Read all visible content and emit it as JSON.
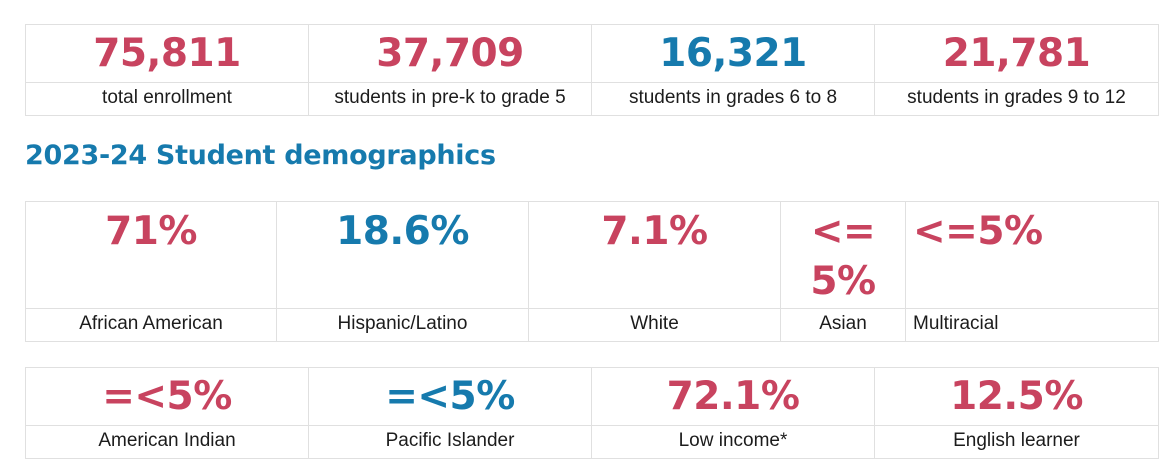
{
  "enrollment": [
    {
      "value": "75,811",
      "label": "total enrollment"
    },
    {
      "value": "37,709",
      "label": "students in pre-k to grade 5"
    },
    {
      "value": "16,321",
      "label": "students in grades 6 to 8"
    },
    {
      "value": "21,781",
      "label": "students in grades 9 to 12"
    }
  ],
  "demographics_title": "2023-24 Student demographics",
  "demographics": [
    {
      "value": "71%",
      "label": "African American"
    },
    {
      "value": "18.6%",
      "label": "Hispanic/Latino"
    },
    {
      "value": "7.1%",
      "label": "White"
    },
    {
      "value": "<=5%",
      "label": "Asian"
    },
    {
      "value": "<=5%",
      "label": "Multiracial"
    }
  ],
  "other_stats": [
    {
      "value": "=<5%",
      "label": "American Indian"
    },
    {
      "value": "=<5%",
      "label": "Pacific Islander"
    },
    {
      "value": "72.1%",
      "label": "Low income*"
    },
    {
      "value": "12.5%",
      "label": "English learner"
    }
  ],
  "colors": {
    "red": "#c8435f",
    "blue": "#167aad"
  }
}
